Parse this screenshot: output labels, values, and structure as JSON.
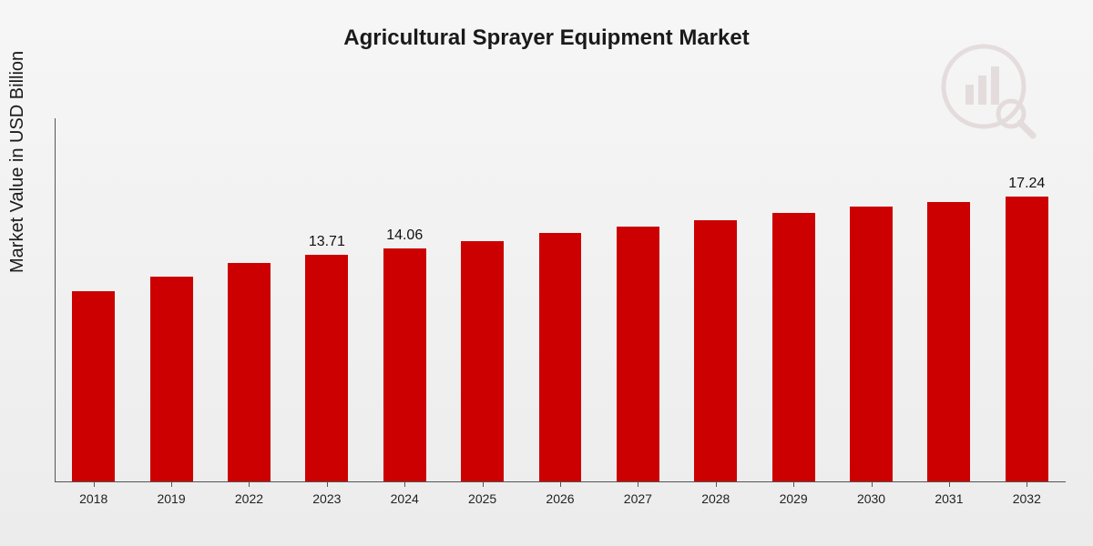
{
  "chart": {
    "type": "bar",
    "title": "Agricultural Sprayer Equipment Market",
    "title_fontsize": 24,
    "ylabel": "Market Value in USD Billion",
    "ylabel_fontsize": 20,
    "background_gradient": [
      "#f6f6f6",
      "#ececec"
    ],
    "bar_color": "#cc0000",
    "axis_color": "#555555",
    "text_color": "#1a1a1a",
    "categories": [
      "2018",
      "2019",
      "2022",
      "2023",
      "2024",
      "2025",
      "2026",
      "2027",
      "2028",
      "2029",
      "2030",
      "2031",
      "2032"
    ],
    "values": [
      11.5,
      12.4,
      13.2,
      13.71,
      14.06,
      14.5,
      15.0,
      15.4,
      15.8,
      16.2,
      16.6,
      16.9,
      17.24
    ],
    "labels": [
      null,
      null,
      null,
      "13.71",
      "14.06",
      null,
      null,
      null,
      null,
      null,
      null,
      null,
      "17.24"
    ],
    "ylim": [
      0,
      22
    ],
    "bar_width_ratio": 0.55,
    "label_fontsize": 16,
    "xtick_fontsize": 14,
    "watermark": {
      "present": true,
      "description": "circular-bars-magnifier-icon",
      "color": "#a05050",
      "opacity": 0.12
    }
  }
}
